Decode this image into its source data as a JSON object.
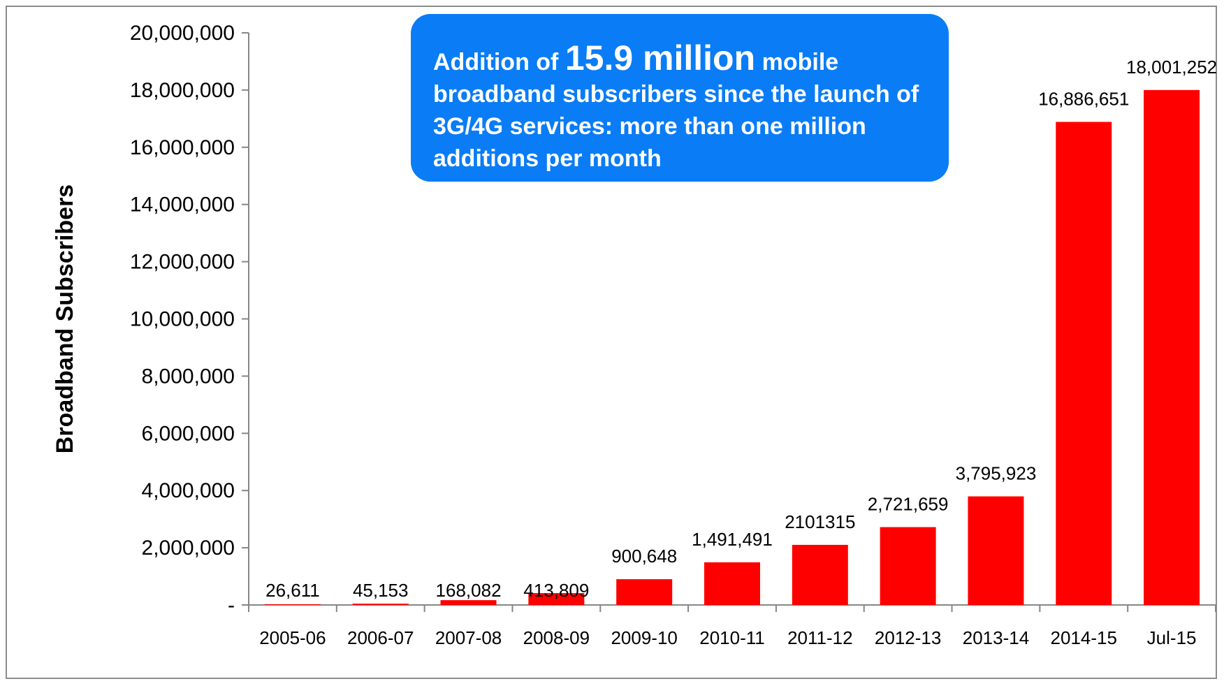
{
  "chart_data": {
    "type": "bar",
    "categories": [
      "2005-06",
      "2006-07",
      "2007-08",
      "2008-09",
      "2009-10",
      "2010-11",
      "2011-12",
      "2012-13",
      "2013-14",
      "2014-15",
      "Jul-15"
    ],
    "values": [
      26611,
      45153,
      168082,
      413809,
      900648,
      1491491,
      2101315,
      2721659,
      3795923,
      16886651,
      18001252
    ],
    "data_labels": [
      "26,611",
      "45,153",
      "168,082",
      "413,809",
      "900,648",
      "1,491,491",
      "2101315",
      "2,721,659",
      "3,795,923",
      "16,886,651",
      "18,001,252"
    ],
    "ylabel": "Broadband Subscribers",
    "xlabel": "",
    "ylim": [
      0,
      20000000
    ],
    "yticks": [
      0,
      2000000,
      4000000,
      6000000,
      8000000,
      10000000,
      12000000,
      14000000,
      16000000,
      18000000,
      20000000
    ],
    "ytick_labels": [
      "-",
      "2,000,000",
      "4,000,000",
      "6,000,000",
      "8,000,000",
      "10,000,000",
      "12,000,000",
      "14,000,000",
      "16,000,000",
      "18,000,000",
      "20,000,000"
    ],
    "bar_color": "#ff0000",
    "grid": false,
    "legend": "none"
  },
  "callout": {
    "prefix": "Addition of ",
    "highlight": "15.9 million",
    "suffix": " mobile broadband subscribers since the launch of 3G/4G services: more than one million additions per month",
    "color": "#0a7cf6"
  }
}
